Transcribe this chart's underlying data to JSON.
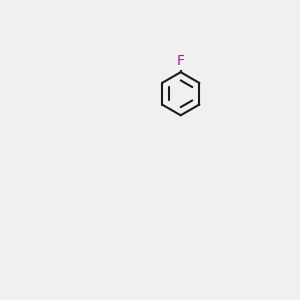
{
  "background_color": "#f0f0f0",
  "bond_color": "#1a1a1a",
  "nitrogen_color": "#0000ff",
  "oxygen_color": "#ff0000",
  "fluorine_color": "#cc00cc",
  "nh_color": "#008080",
  "figsize": [
    3.0,
    3.0
  ],
  "dpi": 100
}
